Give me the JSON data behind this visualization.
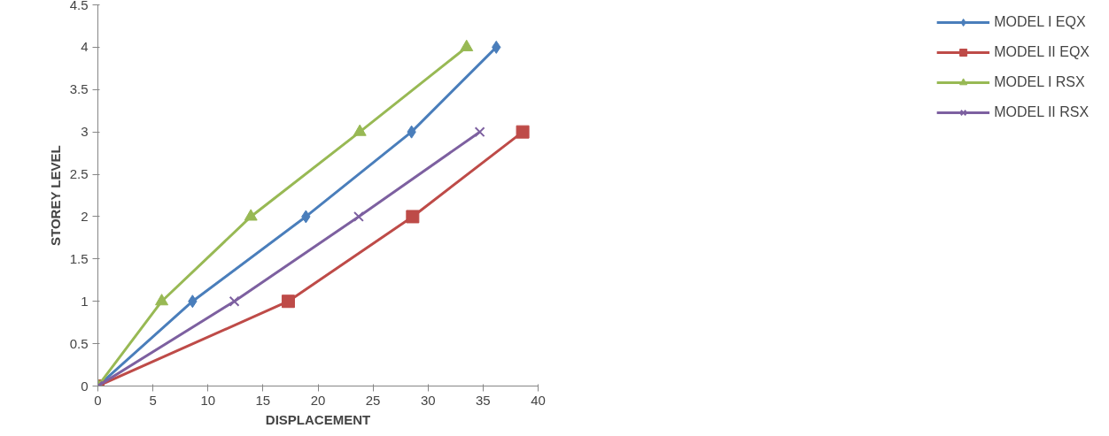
{
  "chart_data": {
    "type": "line",
    "xlabel": "DISPLACEMENT",
    "ylabel": "STOREY LEVEL",
    "xlim": [
      0,
      40
    ],
    "ylim": [
      0,
      4.5
    ],
    "xticks": [
      0,
      5,
      10,
      15,
      20,
      25,
      30,
      35,
      40
    ],
    "yticks": [
      0,
      0.5,
      1,
      1.5,
      2,
      2.5,
      3,
      3.5,
      4,
      4.5
    ],
    "grid": false,
    "legend": "right",
    "series": [
      {
        "name": "MODEL I EQX",
        "color": "#4a7ebb",
        "marker": "diamond",
        "x": [
          0,
          8.6,
          18.9,
          28.5,
          36.2
        ],
        "values": [
          0,
          1,
          2,
          3,
          4
        ]
      },
      {
        "name": "MODEL II EQX",
        "color": "#be4b48",
        "marker": "square",
        "x": [
          0,
          17.3,
          28.6,
          38.6
        ],
        "values": [
          0,
          1,
          2,
          3
        ]
      },
      {
        "name": "MODEL I RSX",
        "color": "#98b954",
        "marker": "triangle",
        "x": [
          0,
          5.8,
          13.9,
          23.8,
          33.5
        ],
        "values": [
          0,
          1,
          2,
          3,
          4
        ]
      },
      {
        "name": "MODEL II RSX",
        "color": "#7d60a0",
        "marker": "cross",
        "x": [
          0,
          12.4,
          23.7,
          34.7
        ],
        "values": [
          0,
          1,
          2,
          3
        ]
      }
    ]
  }
}
